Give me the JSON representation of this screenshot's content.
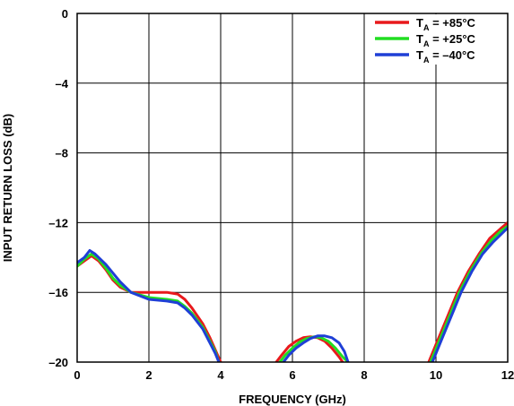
{
  "chart_data": {
    "type": "line",
    "title": "",
    "xlabel": "FREQUENCY (GHz)",
    "ylabel": "INPUT RETURN LOSS (dB)",
    "xlim": [
      0,
      12
    ],
    "ylim": [
      -20,
      0
    ],
    "xticks": [
      "0",
      "2",
      "4",
      "6",
      "8",
      "10",
      "12"
    ],
    "yticks": [
      "0",
      "–4",
      "–8",
      "–12",
      "–16",
      "–20"
    ],
    "grid": true,
    "legend_position": "top-right",
    "series": [
      {
        "name": "T_A = +85°C",
        "legend_main": "T",
        "legend_sub": "A",
        "legend_rest": " = +85°C",
        "color": "#e8191c",
        "segments": [
          [
            [
              0,
              -14.5
            ],
            [
              0.2,
              -14.2
            ],
            [
              0.4,
              -13.9
            ],
            [
              0.6,
              -14.2
            ],
            [
              0.8,
              -14.7
            ],
            [
              1.0,
              -15.3
            ],
            [
              1.2,
              -15.7
            ],
            [
              1.5,
              -16.0
            ],
            [
              2.0,
              -16.0
            ],
            [
              2.5,
              -16.0
            ],
            [
              2.8,
              -16.1
            ],
            [
              3.0,
              -16.4
            ],
            [
              3.2,
              -16.9
            ],
            [
              3.5,
              -17.8
            ],
            [
              3.7,
              -18.6
            ],
            [
              3.85,
              -19.3
            ],
            [
              4.0,
              -20
            ]
          ],
          [
            [
              5.55,
              -20
            ],
            [
              5.7,
              -19.6
            ],
            [
              5.9,
              -19.1
            ],
            [
              6.1,
              -18.8
            ],
            [
              6.3,
              -18.6
            ],
            [
              6.5,
              -18.55
            ],
            [
              6.7,
              -18.6
            ],
            [
              6.9,
              -18.8
            ],
            [
              7.1,
              -19.2
            ],
            [
              7.3,
              -19.7
            ],
            [
              7.4,
              -20
            ]
          ],
          [
            [
              9.8,
              -20
            ],
            [
              10.0,
              -19.0
            ],
            [
              10.3,
              -17.5
            ],
            [
              10.6,
              -16.0
            ],
            [
              10.9,
              -14.8
            ],
            [
              11.2,
              -13.8
            ],
            [
              11.5,
              -12.9
            ],
            [
              11.8,
              -12.35
            ],
            [
              12.0,
              -12.0
            ]
          ]
        ]
      },
      {
        "name": "T_A = +25°C",
        "legend_main": "T",
        "legend_sub": "A",
        "legend_rest": " = +25°C",
        "color": "#22dd22",
        "segments": [
          [
            [
              0,
              -14.5
            ],
            [
              0.2,
              -14.1
            ],
            [
              0.4,
              -13.8
            ],
            [
              0.6,
              -14.1
            ],
            [
              0.8,
              -14.6
            ],
            [
              1.0,
              -15.2
            ],
            [
              1.2,
              -15.6
            ],
            [
              1.5,
              -16.0
            ],
            [
              2.0,
              -16.3
            ],
            [
              2.5,
              -16.4
            ],
            [
              2.8,
              -16.5
            ],
            [
              3.0,
              -16.8
            ],
            [
              3.2,
              -17.2
            ],
            [
              3.5,
              -18.0
            ],
            [
              3.7,
              -18.8
            ],
            [
              3.85,
              -19.4
            ],
            [
              3.95,
              -20
            ]
          ],
          [
            [
              5.65,
              -20
            ],
            [
              5.8,
              -19.6
            ],
            [
              6.0,
              -19.2
            ],
            [
              6.2,
              -18.85
            ],
            [
              6.4,
              -18.65
            ],
            [
              6.6,
              -18.55
            ],
            [
              6.8,
              -18.6
            ],
            [
              7.0,
              -18.8
            ],
            [
              7.2,
              -19.2
            ],
            [
              7.4,
              -19.7
            ],
            [
              7.55,
              -20
            ]
          ],
          [
            [
              9.85,
              -20
            ],
            [
              10.05,
              -19.0
            ],
            [
              10.35,
              -17.5
            ],
            [
              10.65,
              -16.0
            ],
            [
              10.95,
              -14.8
            ],
            [
              11.25,
              -13.8
            ],
            [
              11.55,
              -13.0
            ],
            [
              11.8,
              -12.5
            ],
            [
              12.0,
              -12.2
            ]
          ]
        ]
      },
      {
        "name": "T_A = –40°C",
        "legend_main": "T",
        "legend_sub": "A",
        "legend_rest": " = –40°C",
        "color": "#1f3fd6",
        "segments": [
          [
            [
              0,
              -14.3
            ],
            [
              0.2,
              -14.0
            ],
            [
              0.35,
              -13.6
            ],
            [
              0.5,
              -13.8
            ],
            [
              0.8,
              -14.4
            ],
            [
              1.0,
              -14.9
            ],
            [
              1.2,
              -15.4
            ],
            [
              1.5,
              -16.0
            ],
            [
              2.0,
              -16.4
            ],
            [
              2.5,
              -16.5
            ],
            [
              2.8,
              -16.6
            ],
            [
              3.0,
              -16.9
            ],
            [
              3.2,
              -17.3
            ],
            [
              3.5,
              -18.1
            ],
            [
              3.7,
              -18.9
            ],
            [
              3.85,
              -19.5
            ],
            [
              3.95,
              -20
            ]
          ],
          [
            [
              5.75,
              -20
            ],
            [
              5.9,
              -19.6
            ],
            [
              6.1,
              -19.2
            ],
            [
              6.3,
              -18.9
            ],
            [
              6.5,
              -18.65
            ],
            [
              6.7,
              -18.5
            ],
            [
              6.9,
              -18.5
            ],
            [
              7.1,
              -18.6
            ],
            [
              7.3,
              -18.9
            ],
            [
              7.45,
              -19.4
            ],
            [
              7.55,
              -20
            ]
          ],
          [
            [
              9.9,
              -20
            ],
            [
              10.1,
              -19.0
            ],
            [
              10.4,
              -17.5
            ],
            [
              10.7,
              -16.0
            ],
            [
              11.0,
              -14.8
            ],
            [
              11.3,
              -13.8
            ],
            [
              11.6,
              -13.1
            ],
            [
              11.85,
              -12.6
            ],
            [
              12.0,
              -12.3
            ]
          ]
        ]
      }
    ]
  }
}
